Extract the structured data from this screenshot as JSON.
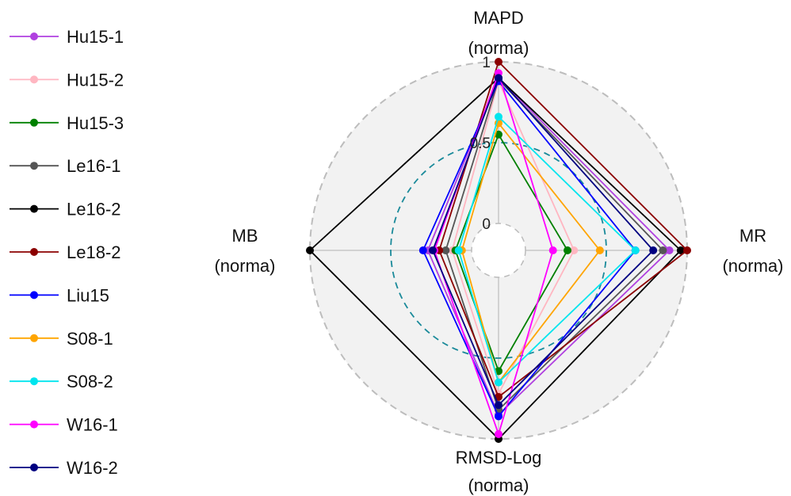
{
  "chart_data": {
    "type": "radar",
    "axes": [
      {
        "key": "MAPD",
        "line1": "MAPD",
        "line2": "(norma)"
      },
      {
        "key": "MR",
        "line1": "MR",
        "line2": "(norma)"
      },
      {
        "key": "RMSD-Log",
        "line1": "RMSD-Log",
        "line2": "(norma)"
      },
      {
        "key": "MB",
        "line1": "MB",
        "line2": "(norma)"
      }
    ],
    "rlim": [
      0,
      1
    ],
    "ticks": [
      {
        "value": 0,
        "label": "0"
      },
      {
        "value": 0.5,
        "label": "0.5"
      },
      {
        "value": 1,
        "label": "1"
      }
    ],
    "legend_position": "left",
    "series": [
      {
        "name": "Hu15-1",
        "color": "#b040e0",
        "values": {
          "MAPD": 0.9,
          "MR": 0.89,
          "RMSD-Log": 0.85,
          "MB": 0.27
        }
      },
      {
        "name": "Hu15-2",
        "color": "#ffb6c1",
        "values": {
          "MAPD": 0.88,
          "MR": 0.3,
          "RMSD-Log": 0.72,
          "MB": 0.12
        }
      },
      {
        "name": "Hu15-3",
        "color": "#008000",
        "values": {
          "MAPD": 0.55,
          "MR": 0.26,
          "RMSD-Log": 0.58,
          "MB": 0.1
        }
      },
      {
        "name": "Le16-1",
        "color": "#555555",
        "values": {
          "MAPD": 0.89,
          "MR": 0.85,
          "RMSD-Log": 0.82,
          "MB": 0.16
        }
      },
      {
        "name": "Le16-2",
        "color": "#000000",
        "values": {
          "MAPD": 0.9,
          "MR": 0.96,
          "RMSD-Log": 1.0,
          "MB": 1.0
        }
      },
      {
        "name": "Le18-2",
        "color": "#8b0000",
        "values": {
          "MAPD": 1.0,
          "MR": 1.0,
          "RMSD-Log": 0.74,
          "MB": 0.2
        }
      },
      {
        "name": "Liu15",
        "color": "#0000ff",
        "values": {
          "MAPD": 0.88,
          "MR": 0.68,
          "RMSD-Log": 0.86,
          "MB": 0.3
        }
      },
      {
        "name": "S08-1",
        "color": "#ffa500",
        "values": {
          "MAPD": 0.62,
          "MR": 0.46,
          "RMSD-Log": 0.65,
          "MB": 0.06
        }
      },
      {
        "name": "S08-2",
        "color": "#00e5ee",
        "values": {
          "MAPD": 0.66,
          "MR": 0.68,
          "RMSD-Log": 0.65,
          "MB": 0.08
        }
      },
      {
        "name": "W16-1",
        "color": "#ff00ff",
        "values": {
          "MAPD": 0.93,
          "MR": 0.17,
          "RMSD-Log": 0.97,
          "MB": 0.23
        }
      },
      {
        "name": "W16-2",
        "color": "#000080",
        "values": {
          "MAPD": 0.9,
          "MR": 0.79,
          "RMSD-Log": 0.79,
          "MB": 0.24
        }
      }
    ]
  }
}
